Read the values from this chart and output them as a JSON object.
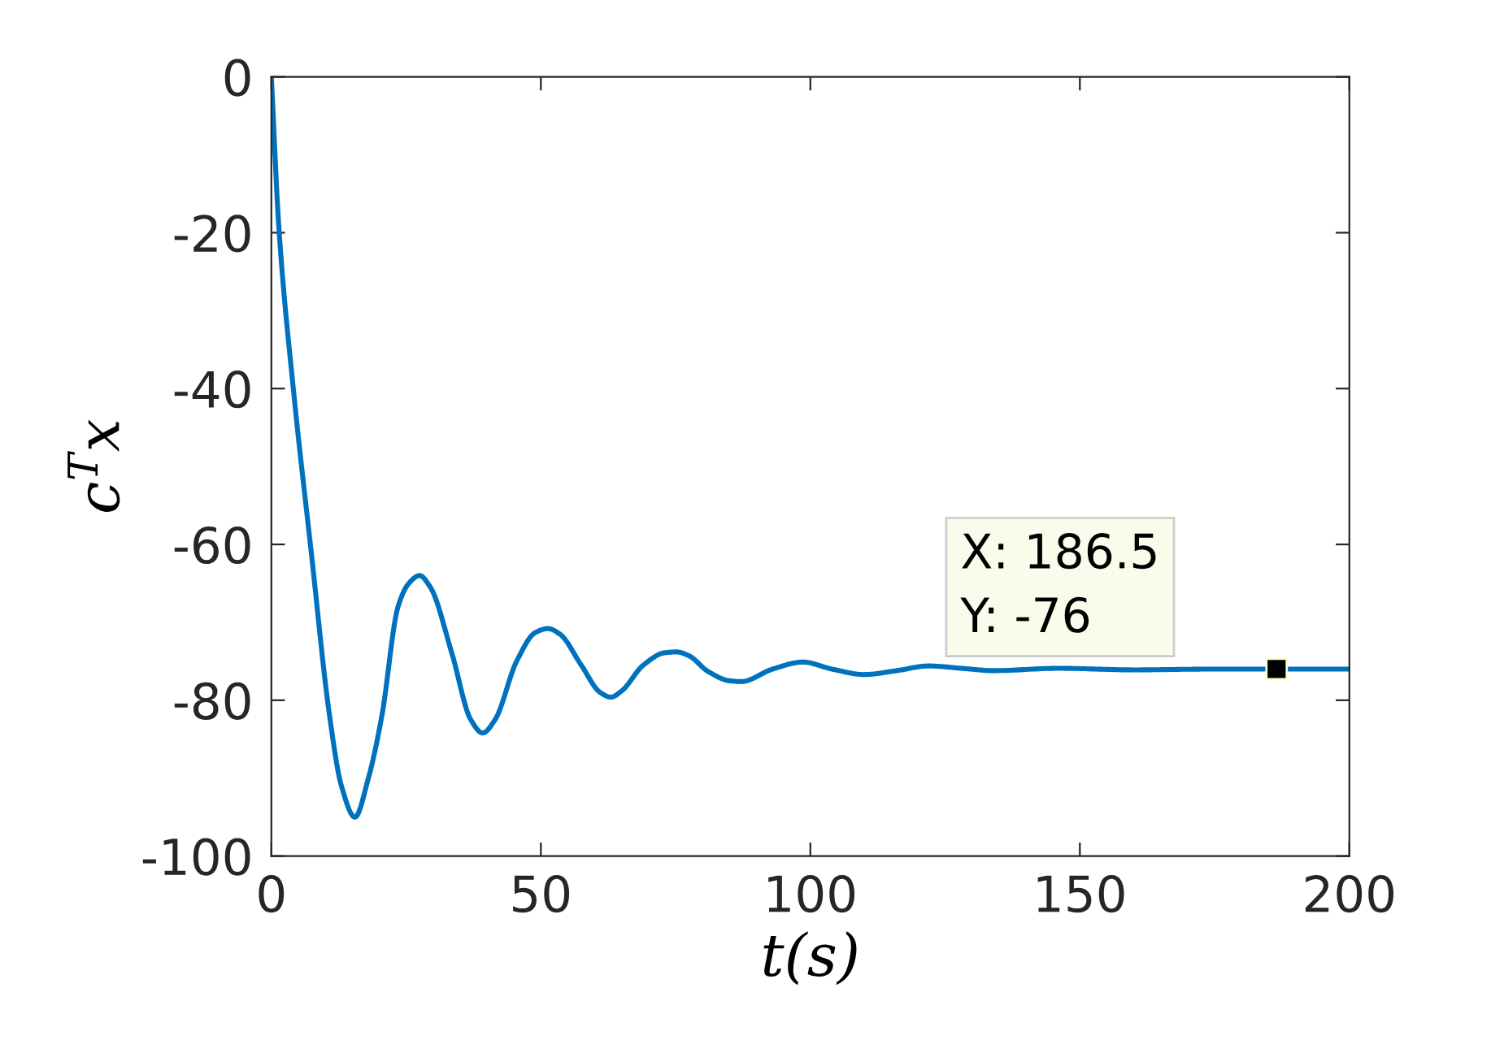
{
  "chart_data": {
    "type": "line",
    "xlabel": "t(s)",
    "ylabel": "c$^{T}$x",
    "xlim": [
      0,
      200
    ],
    "xticks": [
      0,
      50,
      100,
      150,
      200
    ],
    "ylim": [
      -100,
      0
    ],
    "yticks": [
      -100,
      -80,
      -60,
      -40,
      -20,
      0
    ],
    "grid": false,
    "marker": "none",
    "line_style": "solid",
    "x": [
      0,
      1.4,
      4.1,
      7.4,
      10.8,
      13,
      15.5,
      18,
      20.5,
      23.5,
      25.5,
      27.5,
      29.5,
      33.5,
      37,
      39.2,
      41.5,
      45.5,
      49,
      51.3,
      53.5,
      57.5,
      61,
      63,
      65,
      69,
      73,
      75.2,
      77.5,
      81,
      85,
      87.2,
      93,
      98.6,
      104,
      110,
      116,
      122,
      128,
      134,
      146,
      160,
      175,
      186.5,
      200
    ],
    "series": [
      {
        "color": "#0072bd",
        "values": [
          0,
          -19.4,
          -40.2,
          -61,
          -82,
          -91,
          -95,
          -90,
          -82,
          -68,
          -65,
          -64,
          -65.5,
          -74,
          -82.5,
          -84.2,
          -82.5,
          -75,
          -71.3,
          -70.8,
          -71.5,
          -75.5,
          -79,
          -79.6,
          -78.8,
          -75.5,
          -73.9,
          -73.8,
          -74.3,
          -76.3,
          -77.5,
          -77.6,
          -76,
          -75.1,
          -76,
          -76.7,
          -76.2,
          -75.6,
          -75.9,
          -76.2,
          -75.9,
          -76.1,
          -76,
          -76,
          -76
        ]
      }
    ],
    "annotations": [
      {
        "text": "X: 186.5\nY: -76",
        "x": 186.5,
        "y": -76
      }
    ]
  }
}
